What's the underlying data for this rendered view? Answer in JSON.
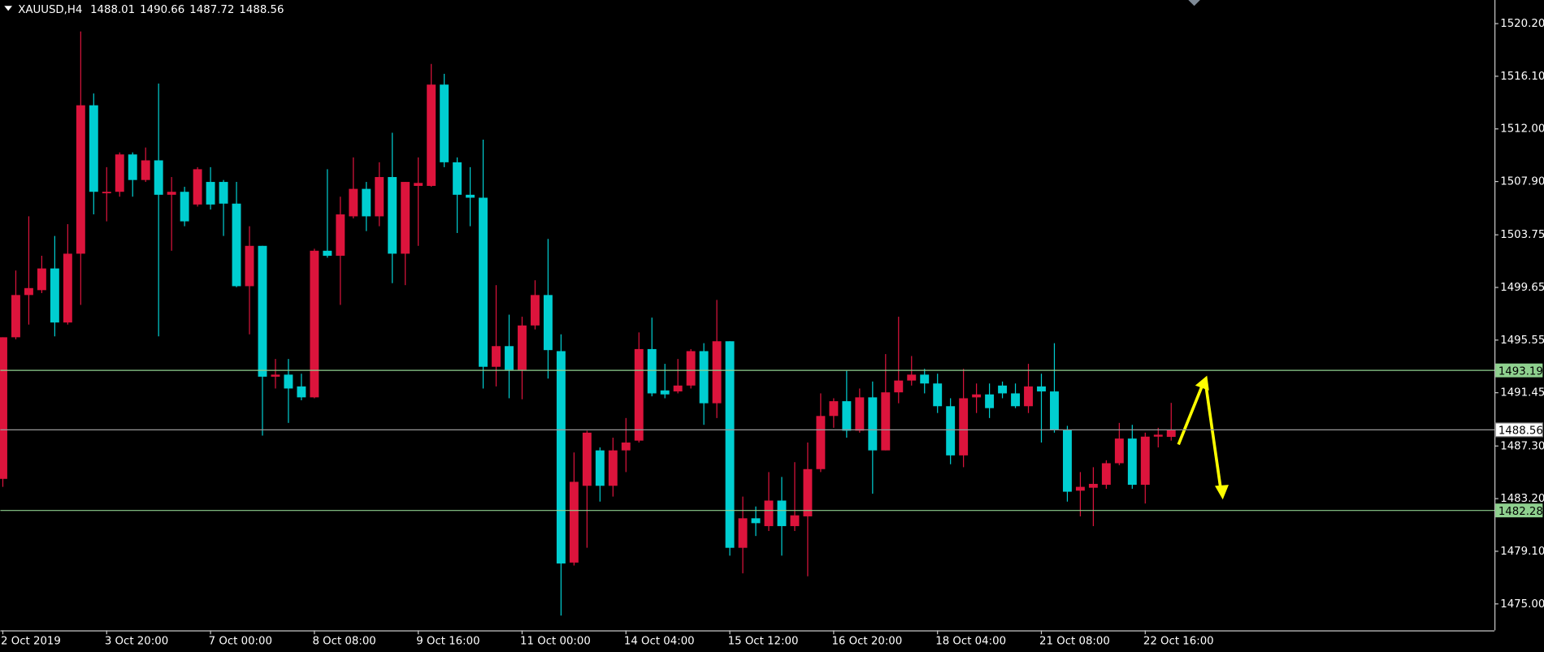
{
  "chart_data": {
    "type": "candlestick",
    "symbol": "XAUUSD,H4",
    "up_color": "#dc143c",
    "down_color": "#00ced1",
    "categories": [
      "2 Oct 2019",
      null,
      null,
      null,
      null,
      null,
      null,
      null,
      "3 Oct 20:00",
      null,
      null,
      null,
      null,
      null,
      null,
      null,
      "7 Oct 00:00",
      null,
      null,
      null,
      null,
      null,
      null,
      null,
      "8 Oct 08:00",
      null,
      null,
      null,
      null,
      null,
      null,
      null,
      "9 Oct 16:00",
      null,
      null,
      null,
      null,
      null,
      null,
      null,
      "11 Oct 00:00",
      null,
      null,
      null,
      null,
      null,
      null,
      null,
      "14 Oct 04:00",
      null,
      null,
      null,
      null,
      null,
      null,
      null,
      "15 Oct 12:00",
      null,
      null,
      null,
      null,
      null,
      null,
      null,
      "16 Oct 20:00",
      null,
      null,
      null,
      null,
      null,
      null,
      null,
      "18 Oct 04:00",
      null,
      null,
      null,
      null,
      null,
      null,
      null,
      "21 Oct 08:00",
      null,
      null,
      null,
      null,
      null,
      null,
      null,
      "22 Oct 16:00",
      null,
      null
    ],
    "open": [
      1484.74,
      1495.77,
      1499.06,
      1499.44,
      1501.13,
      1496.92,
      1502.28,
      1513.84,
      1507.03,
      1507.1,
      1510.01,
      1508.02,
      1509.55,
      1506.87,
      1507.1,
      1506.11,
      1507.87,
      1507.87,
      1506.18,
      1499.75,
      1502.89,
      1492.7,
      1492.86,
      1491.94,
      1491.09,
      1502.51,
      1502.12,
      1505.19,
      1507.33,
      1505.19,
      1508.25,
      1502.28,
      1507.56,
      1507.56,
      1515.45,
      1509.4,
      1506.87,
      1506.64,
      1493.47,
      1495.08,
      1493.24,
      1496.69,
      1499.06,
      1494.69,
      1478.22,
      1484.2,
      1486.96,
      1484.2,
      1486.96,
      1487.72,
      1494.85,
      1491.63,
      1491.55,
      1492.01,
      1494.69,
      1490.63,
      1495.46,
      1479.37,
      1481.67,
      1481.06,
      1483.05,
      1481.06,
      1481.82,
      1485.5,
      1489.64,
      1490.79,
      1488.49,
      1491.09,
      1486.96,
      1491.48,
      1492.4,
      1492.86,
      1492.17,
      1490.4,
      1486.57,
      1491.09,
      1491.32,
      1492.01,
      1491.4,
      1490.4,
      1491.94,
      1491.55,
      1488.57,
      1483.82,
      1484.05,
      1484.28,
      1485.96,
      1487.88,
      1484.28,
      1488.03,
      1488.01
    ],
    "high": [
      1495.77,
      1500.97,
      1505.19,
      1502.12,
      1503.66,
      1504.58,
      1519.59,
      1514.76,
      1509.02,
      1510.17,
      1510.17,
      1510.55,
      1515.53,
      1508.25,
      1507.49,
      1509.02,
      1509.02,
      1508.02,
      1507.87,
      1504.42,
      1502.89,
      1494.08,
      1494.08,
      1492.93,
      1502.66,
      1508.86,
      1506.72,
      1509.78,
      1507.87,
      1509.4,
      1511.7,
      1507.87,
      1509.78,
      1517.06,
      1516.29,
      1509.78,
      1509.02,
      1511.16,
      1499.83,
      1497.53,
      1497.37,
      1500.21,
      1503.43,
      1496.0,
      1486.8,
      1488.49,
      1487.19,
      1487.95,
      1489.48,
      1496.15,
      1497.3,
      1493.7,
      1494.08,
      1494.85,
      1495.31,
      1498.68,
      1495.46,
      1483.36,
      1482.59,
      1485.27,
      1484.89,
      1486.04,
      1487.57,
      1491.4,
      1491.02,
      1493.16,
      1491.78,
      1492.32,
      1494.46,
      1497.37,
      1494.31,
      1493.31,
      1492.93,
      1491.02,
      1493.31,
      1492.17,
      1492.17,
      1492.32,
      1492.17,
      1493.7,
      1492.93,
      1495.31,
      1488.87,
      1485.27,
      1485.65,
      1486.19,
      1489.1,
      1488.95,
      1488.34,
      1488.72,
      1490.66
    ],
    "low": [
      1484.12,
      1495.61,
      1496.76,
      1499.21,
      1495.84,
      1496.76,
      1498.29,
      1505.34,
      1504.8,
      1506.72,
      1506.72,
      1507.87,
      1495.84,
      1502.51,
      1504.42,
      1505.95,
      1505.72,
      1503.66,
      1499.67,
      1496.0,
      1488.11,
      1491.78,
      1489.1,
      1490.86,
      1491.02,
      1501.97,
      1498.29,
      1505.03,
      1504.04,
      1504.42,
      1499.98,
      1499.83,
      1502.89,
      1507.49,
      1509.02,
      1503.89,
      1504.42,
      1491.78,
      1491.94,
      1491.02,
      1490.94,
      1496.38,
      1492.55,
      1474.09,
      1477.99,
      1479.37,
      1482.97,
      1483.36,
      1485.27,
      1487.57,
      1491.17,
      1491.02,
      1491.4,
      1491.78,
      1488.95,
      1489.48,
      1478.76,
      1477.38,
      1480.29,
      1480.68,
      1478.76,
      1480.68,
      1477.15,
      1485.27,
      1488.72,
      1487.95,
      1488.34,
      1483.59,
      1486.96,
      1490.63,
      1492.01,
      1491.4,
      1489.87,
      1485.88,
      1485.65,
      1489.87,
      1489.48,
      1491.02,
      1490.25,
      1489.87,
      1487.57,
      1488.34,
      1482.97,
      1481.82,
      1481.06,
      1483.97,
      1485.81,
      1483.97,
      1482.82,
      1487.19,
      1487.72
    ],
    "close": [
      1495.77,
      1499.06,
      1499.6,
      1501.13,
      1496.92,
      1502.28,
      1513.84,
      1507.1,
      1507.1,
      1510.01,
      1508.02,
      1509.55,
      1506.87,
      1507.1,
      1504.8,
      1508.86,
      1506.11,
      1506.18,
      1499.75,
      1502.89,
      1492.7,
      1492.86,
      1491.78,
      1491.09,
      1502.51,
      1502.12,
      1505.34,
      1507.33,
      1505.19,
      1508.25,
      1502.28,
      1507.87,
      1507.79,
      1515.45,
      1509.4,
      1506.87,
      1506.64,
      1493.47,
      1495.08,
      1493.24,
      1496.69,
      1499.06,
      1494.77,
      1478.15,
      1484.51,
      1488.34,
      1484.2,
      1486.96,
      1487.57,
      1494.85,
      1491.4,
      1491.32,
      1492.01,
      1494.69,
      1490.63,
      1495.46,
      1479.37,
      1481.67,
      1481.29,
      1483.05,
      1481.06,
      1481.9,
      1485.5,
      1489.64,
      1490.79,
      1488.49,
      1491.09,
      1486.96,
      1491.48,
      1492.4,
      1492.86,
      1492.17,
      1490.4,
      1486.57,
      1491.02,
      1491.32,
      1490.25,
      1491.4,
      1490.4,
      1491.94,
      1491.55,
      1488.57,
      1483.74,
      1484.12,
      1484.35,
      1485.96,
      1487.88,
      1484.28,
      1488.03,
      1488.18,
      1488.56
    ],
    "ylim": [
      1472.94,
      1522.04
    ],
    "yticks": [
      {
        "value": 1520.2,
        "label": "1520.20"
      },
      {
        "value": 1516.1,
        "label": "1516.10"
      },
      {
        "value": 1512,
        "label": "1512.00"
      },
      {
        "value": 1507.9,
        "label": "1507.90"
      },
      {
        "value": 1503.75,
        "label": "1503.75"
      },
      {
        "value": 1499.65,
        "label": "1499.65"
      },
      {
        "value": 1495.55,
        "label": "1495.55"
      },
      {
        "value": 1491.45,
        "label": "1491.45"
      },
      {
        "value": 1487.3,
        "label": "1487.30"
      },
      {
        "value": 1483.2,
        "label": "1483.20"
      },
      {
        "value": 1479.1,
        "label": "1479.10"
      },
      {
        "value": 1475,
        "label": "1475.00"
      }
    ],
    "levels": [
      {
        "value": 1493.19,
        "color": "#8fd18f"
      },
      {
        "value": 1488.56,
        "color": "#9a9a9a"
      },
      {
        "value": 1482.28,
        "color": "#8fd18f"
      }
    ]
  }
}
